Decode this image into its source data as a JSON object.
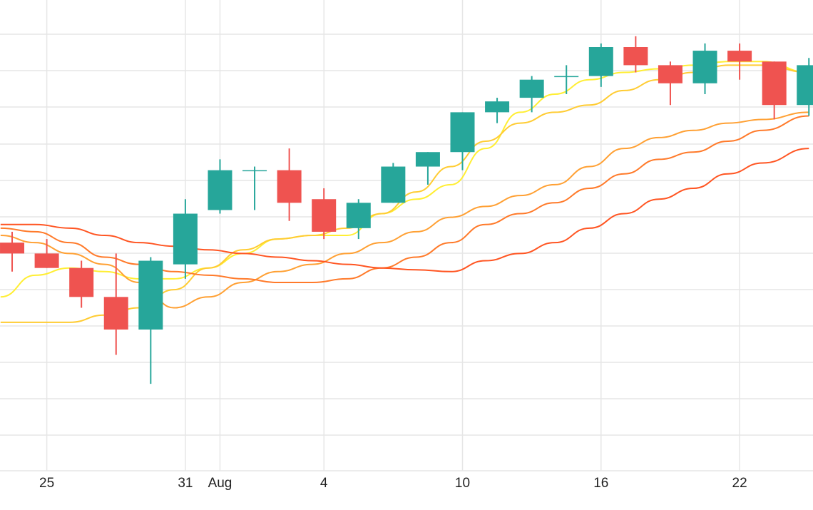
{
  "chart_data": {
    "type": "candlestick",
    "x_axis_ticks": [
      {
        "day": 25,
        "label": "25"
      },
      {
        "day": 31,
        "label": "31"
      },
      {
        "day": 32.5,
        "label": "Aug"
      },
      {
        "day": 37,
        "label": "4"
      },
      {
        "day": 43,
        "label": "10"
      },
      {
        "day": 49,
        "label": "16"
      },
      {
        "day": 55,
        "label": "22"
      }
    ],
    "x_range_days": [
      23,
      58.2
    ],
    "y_range": [
      0,
      13
    ],
    "grid": true,
    "colors": {
      "up": "#26a69a",
      "down": "#ef5350",
      "grid": "#e6e6e6",
      "ma_series": [
        "#ffee33",
        "#ffcc33",
        "#ffa033",
        "#ff7a2a",
        "#ff5522"
      ]
    },
    "candles": [
      {
        "day": 23.5,
        "open": 6.3,
        "high": 6.6,
        "low": 5.5,
        "close": 6.0
      },
      {
        "day": 25.0,
        "open": 6.0,
        "high": 6.4,
        "low": 5.6,
        "close": 5.6
      },
      {
        "day": 26.5,
        "open": 5.6,
        "high": 5.8,
        "low": 4.5,
        "close": 4.8
      },
      {
        "day": 28.0,
        "open": 4.8,
        "high": 6.0,
        "low": 3.2,
        "close": 3.9
      },
      {
        "day": 29.5,
        "open": 3.9,
        "high": 5.9,
        "low": 2.4,
        "close": 5.8
      },
      {
        "day": 31.0,
        "open": 5.7,
        "high": 7.5,
        "low": 5.3,
        "close": 7.1
      },
      {
        "day": 32.5,
        "open": 7.2,
        "high": 8.6,
        "low": 7.1,
        "close": 8.3
      },
      {
        "day": 34.0,
        "open": 8.3,
        "high": 8.4,
        "low": 7.2,
        "close": 8.3
      },
      {
        "day": 35.5,
        "open": 8.3,
        "high": 8.9,
        "low": 6.9,
        "close": 7.4
      },
      {
        "day": 37.0,
        "open": 7.5,
        "high": 7.8,
        "low": 6.4,
        "close": 6.6
      },
      {
        "day": 38.5,
        "open": 6.7,
        "high": 7.5,
        "low": 6.4,
        "close": 7.4
      },
      {
        "day": 40.0,
        "open": 7.4,
        "high": 8.5,
        "low": 7.4,
        "close": 8.4
      },
      {
        "day": 41.5,
        "open": 8.4,
        "high": 8.8,
        "low": 7.9,
        "close": 8.8
      },
      {
        "day": 43.0,
        "open": 8.8,
        "high": 9.9,
        "low": 8.3,
        "close": 9.9
      },
      {
        "day": 44.5,
        "open": 9.9,
        "high": 10.3,
        "low": 9.6,
        "close": 10.2
      },
      {
        "day": 46.0,
        "open": 10.3,
        "high": 10.9,
        "low": 9.9,
        "close": 10.8
      },
      {
        "day": 47.5,
        "open": 10.9,
        "high": 11.2,
        "low": 10.4,
        "close": 10.9
      },
      {
        "day": 49.0,
        "open": 10.9,
        "high": 11.8,
        "low": 10.6,
        "close": 11.7
      },
      {
        "day": 50.5,
        "open": 11.7,
        "high": 12.0,
        "low": 11.0,
        "close": 11.2
      },
      {
        "day": 52.0,
        "open": 11.2,
        "high": 11.3,
        "low": 10.1,
        "close": 10.7
      },
      {
        "day": 53.5,
        "open": 10.7,
        "high": 11.8,
        "low": 10.4,
        "close": 11.6
      },
      {
        "day": 55.0,
        "open": 11.6,
        "high": 11.8,
        "low": 10.8,
        "close": 11.3
      },
      {
        "day": 56.5,
        "open": 11.3,
        "high": 11.3,
        "low": 9.7,
        "close": 10.1
      },
      {
        "day": 58.0,
        "open": 10.1,
        "high": 11.4,
        "low": 9.8,
        "close": 11.2
      }
    ],
    "moving_averages": [
      {
        "color": "#ffee33",
        "points": [
          [
            23,
            4.8
          ],
          [
            24.5,
            5.4
          ],
          [
            26,
            5.6
          ],
          [
            27.5,
            5.5
          ],
          [
            29,
            5.3
          ],
          [
            30.5,
            5.3
          ],
          [
            32,
            5.6
          ],
          [
            33.5,
            6.0
          ],
          [
            35,
            6.4
          ],
          [
            36.5,
            6.5
          ],
          [
            38,
            6.5
          ],
          [
            39.5,
            7.1
          ],
          [
            41,
            7.5
          ],
          [
            42.5,
            7.9
          ],
          [
            44,
            8.9
          ],
          [
            45.5,
            9.9
          ],
          [
            47,
            10.4
          ],
          [
            48.5,
            10.8
          ],
          [
            50,
            11.0
          ],
          [
            51.5,
            11.1
          ],
          [
            53,
            11.2
          ],
          [
            54.5,
            11.3
          ],
          [
            56,
            11.3
          ],
          [
            58,
            11.0
          ]
        ]
      },
      {
        "color": "#ffcc33",
        "points": [
          [
            23,
            4.1
          ],
          [
            24.5,
            4.1
          ],
          [
            26,
            4.1
          ],
          [
            27.5,
            4.3
          ],
          [
            29,
            4.5
          ],
          [
            30.5,
            5.0
          ],
          [
            32,
            5.6
          ],
          [
            33.5,
            6.1
          ],
          [
            35,
            6.4
          ],
          [
            36.5,
            6.5
          ],
          [
            38,
            6.7
          ],
          [
            39.5,
            7.1
          ],
          [
            41,
            7.7
          ],
          [
            42.5,
            8.4
          ],
          [
            44,
            9.1
          ],
          [
            45.5,
            9.6
          ],
          [
            47,
            9.9
          ],
          [
            48.5,
            10.1
          ],
          [
            50,
            10.5
          ],
          [
            51.5,
            10.8
          ],
          [
            53,
            11.0
          ],
          [
            54.5,
            11.2
          ],
          [
            56,
            11.2
          ],
          [
            58,
            11.0
          ]
        ]
      },
      {
        "color": "#ffa033",
        "points": [
          [
            23,
            6.5
          ],
          [
            24.5,
            6.3
          ],
          [
            26,
            6.0
          ],
          [
            27.5,
            5.7
          ],
          [
            29,
            5.2
          ],
          [
            30.5,
            4.5
          ],
          [
            32,
            4.8
          ],
          [
            33.5,
            5.2
          ],
          [
            35,
            5.5
          ],
          [
            36.5,
            5.7
          ],
          [
            38,
            6.0
          ],
          [
            39.5,
            6.3
          ],
          [
            41,
            6.6
          ],
          [
            42.5,
            7.0
          ],
          [
            44,
            7.3
          ],
          [
            45.5,
            7.6
          ],
          [
            47,
            7.9
          ],
          [
            48.5,
            8.4
          ],
          [
            50,
            8.9
          ],
          [
            51.5,
            9.2
          ],
          [
            53,
            9.4
          ],
          [
            54.5,
            9.6
          ],
          [
            56,
            9.7
          ],
          [
            58,
            9.9
          ]
        ]
      },
      {
        "color": "#ff7a2a",
        "points": [
          [
            23,
            6.7
          ],
          [
            24.5,
            6.6
          ],
          [
            26,
            6.3
          ],
          [
            27.5,
            5.9
          ],
          [
            29,
            5.7
          ],
          [
            30.5,
            5.5
          ],
          [
            32,
            5.4
          ],
          [
            33.5,
            5.3
          ],
          [
            35,
            5.2
          ],
          [
            36.5,
            5.2
          ],
          [
            38,
            5.3
          ],
          [
            39.5,
            5.6
          ],
          [
            41,
            5.9
          ],
          [
            42.5,
            6.3
          ],
          [
            44,
            6.8
          ],
          [
            45.5,
            7.1
          ],
          [
            47,
            7.4
          ],
          [
            48.5,
            7.8
          ],
          [
            50,
            8.2
          ],
          [
            51.5,
            8.6
          ],
          [
            53,
            8.8
          ],
          [
            54.5,
            9.1
          ],
          [
            56,
            9.4
          ],
          [
            58,
            9.8
          ]
        ]
      },
      {
        "color": "#ff5522",
        "points": [
          [
            23,
            6.8
          ],
          [
            24.5,
            6.8
          ],
          [
            26,
            6.7
          ],
          [
            27.5,
            6.5
          ],
          [
            29,
            6.3
          ],
          [
            30.5,
            6.2
          ],
          [
            32,
            6.1
          ],
          [
            33.5,
            6.0
          ],
          [
            35,
            5.9
          ],
          [
            36.5,
            5.8
          ],
          [
            38,
            5.7
          ],
          [
            39.5,
            5.6
          ],
          [
            41,
            5.55
          ],
          [
            42.5,
            5.5
          ],
          [
            44,
            5.8
          ],
          [
            45.5,
            6.0
          ],
          [
            47,
            6.3
          ],
          [
            48.5,
            6.7
          ],
          [
            50,
            7.1
          ],
          [
            51.5,
            7.5
          ],
          [
            53,
            7.8
          ],
          [
            54.5,
            8.2
          ],
          [
            56,
            8.5
          ],
          [
            58,
            8.9
          ]
        ]
      }
    ]
  }
}
